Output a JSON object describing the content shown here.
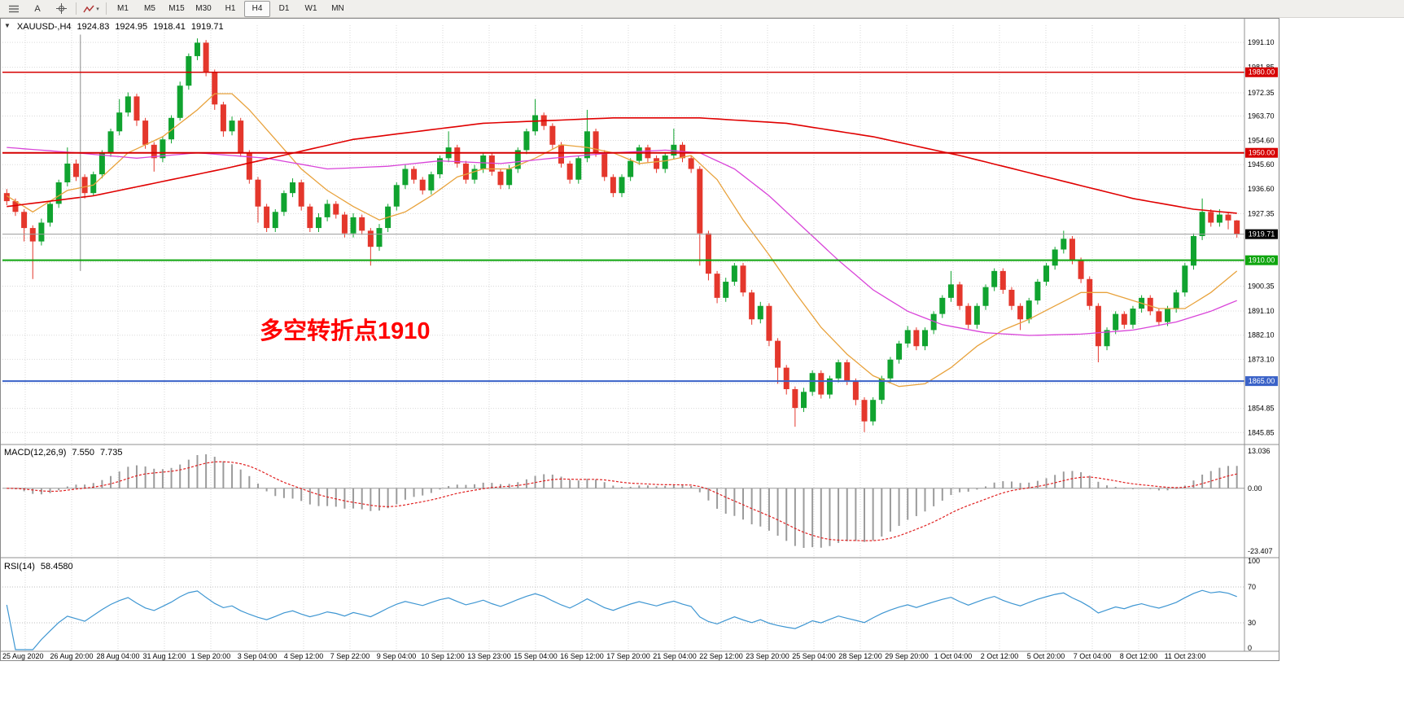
{
  "toolbar": {
    "buttons": [
      {
        "name": "chart-list"
      },
      {
        "label": "A"
      },
      {
        "name": "crosshair"
      },
      {
        "name": "draw-object"
      }
    ],
    "timeframes": [
      "M1",
      "M5",
      "M15",
      "M30",
      "H1",
      "H4",
      "D1",
      "W1",
      "MN"
    ],
    "active_timeframe": "H4"
  },
  "chart": {
    "title": {
      "symbol": "XAUUSD-,H4",
      "open": "1924.83",
      "high": "1924.95",
      "low": "1918.41",
      "close": "1919.71"
    },
    "annotation": {
      "text": "多空转折点1910",
      "color": "#ff0000"
    }
  },
  "chart_data": {
    "type": "candlestick",
    "symbol": "XAUUSD",
    "timeframe": "H4",
    "colors": {
      "up": "#10a32f",
      "down": "#e4372c",
      "grid": "#d9d9d9",
      "axis_text": "#000000",
      "macd_histogram": "#9b9b9b",
      "macd_signal": "#e02020",
      "rsi_line": "#3e96d2"
    },
    "price_axis": {
      "gridlines": [
        1991.1,
        1981.85,
        1972.35,
        1963.7,
        1954.6,
        1945.6,
        1936.6,
        1927.35,
        1918.35,
        1909.35,
        1900.35,
        1891.1,
        1882.1,
        1873.1,
        1864.1,
        1854.85,
        1845.85
      ],
      "hidden_labels": [
        1918.35,
        1909.35,
        1864.1
      ]
    },
    "time_axis_labels": [
      "25 Aug 2020",
      "26 Aug 20:00",
      "28 Aug 04:00",
      "31 Aug 12:00",
      "1 Sep 20:00",
      "3 Sep 04:00",
      "4 Sep 12:00",
      "7 Sep 22:00",
      "9 Sep 04:00",
      "10 Sep 12:00",
      "13 Sep 23:00",
      "15 Sep 04:00",
      "16 Sep 12:00",
      "17 Sep 20:00",
      "21 Sep 04:00",
      "22 Sep 12:00",
      "23 Sep 20:00",
      "25 Sep 04:00",
      "28 Sep 12:00",
      "29 Sep 20:00",
      "1 Oct 04:00",
      "2 Oct 12:00",
      "5 Oct 20:00",
      "7 Oct 04:00",
      "8 Oct 12:00",
      "11 Oct 23:00"
    ],
    "levels": [
      {
        "price": 1980.0,
        "label": "1980.00",
        "color": "#d60000",
        "width": 1.5
      },
      {
        "price": 1950.0,
        "label": "1950.00",
        "color": "#d60000",
        "width": 2
      },
      {
        "price": 1910.0,
        "label": "1910.00",
        "color": "#0ea50e",
        "width": 2
      },
      {
        "price": 1865.0,
        "label": "1865.00",
        "color": "#3a62c8",
        "width": 2
      }
    ],
    "bid": {
      "price": 1919.71,
      "label": "1919.71",
      "line_color": "#9c9c9c",
      "box_color": "#000000"
    },
    "objects": [
      {
        "type": "vertical-segment",
        "index": 8.5,
        "from_price": 1994,
        "to_price": 1906,
        "color": "#8a8a8a"
      }
    ],
    "moving_averages": [
      {
        "name": "ma-fast",
        "color": "#e8a23c",
        "width": 1.3,
        "points": [
          [
            0,
            1934
          ],
          [
            3,
            1928
          ],
          [
            7,
            1936
          ],
          [
            10,
            1938
          ],
          [
            14,
            1950
          ],
          [
            18,
            1956
          ],
          [
            22,
            1966
          ],
          [
            24,
            1972
          ],
          [
            26,
            1972
          ],
          [
            28,
            1966
          ],
          [
            31,
            1955
          ],
          [
            34,
            1944
          ],
          [
            37,
            1936
          ],
          [
            40,
            1930
          ],
          [
            43,
            1925
          ],
          [
            46,
            1928
          ],
          [
            49,
            1934
          ],
          [
            52,
            1941
          ],
          [
            55,
            1944
          ],
          [
            58,
            1944
          ],
          [
            61,
            1948
          ],
          [
            64,
            1953
          ],
          [
            67,
            1952
          ],
          [
            70,
            1950
          ],
          [
            73,
            1946
          ],
          [
            76,
            1947
          ],
          [
            79,
            1949
          ],
          [
            82,
            1940
          ],
          [
            85,
            1925
          ],
          [
            88,
            1912
          ],
          [
            91,
            1898
          ],
          [
            94,
            1885
          ],
          [
            97,
            1875
          ],
          [
            100,
            1867
          ],
          [
            103,
            1863
          ],
          [
            106,
            1864
          ],
          [
            109,
            1870
          ],
          [
            112,
            1878
          ],
          [
            115,
            1884
          ],
          [
            118,
            1888
          ],
          [
            121,
            1893
          ],
          [
            124,
            1898
          ],
          [
            127,
            1898
          ],
          [
            130,
            1895
          ],
          [
            133,
            1892
          ],
          [
            136,
            1892
          ],
          [
            139,
            1898
          ],
          [
            142,
            1906
          ]
        ]
      },
      {
        "name": "ma-mid",
        "color": "#d945d9",
        "width": 1.3,
        "points": [
          [
            0,
            1952
          ],
          [
            8,
            1950
          ],
          [
            15,
            1948
          ],
          [
            22,
            1950
          ],
          [
            30,
            1948
          ],
          [
            37,
            1944
          ],
          [
            44,
            1945
          ],
          [
            50,
            1947
          ],
          [
            57,
            1946
          ],
          [
            63,
            1948
          ],
          [
            70,
            1950
          ],
          [
            76,
            1951
          ],
          [
            80,
            1950
          ],
          [
            84,
            1944
          ],
          [
            88,
            1934
          ],
          [
            92,
            1922
          ],
          [
            96,
            1910
          ],
          [
            100,
            1899
          ],
          [
            104,
            1891
          ],
          [
            108,
            1886
          ],
          [
            113,
            1883
          ],
          [
            118,
            1882
          ],
          [
            124,
            1882.5
          ],
          [
            130,
            1884
          ],
          [
            135,
            1887
          ],
          [
            139,
            1891
          ],
          [
            142,
            1895
          ]
        ]
      },
      {
        "name": "ma-slow",
        "color": "#e00000",
        "width": 1.6,
        "points": [
          [
            0,
            1930
          ],
          [
            10,
            1934
          ],
          [
            25,
            1944
          ],
          [
            40,
            1955
          ],
          [
            55,
            1961
          ],
          [
            70,
            1963
          ],
          [
            80,
            1963
          ],
          [
            90,
            1961
          ],
          [
            100,
            1956
          ],
          [
            110,
            1949
          ],
          [
            120,
            1941
          ],
          [
            130,
            1933
          ],
          [
            137,
            1929
          ],
          [
            142,
            1927.5
          ]
        ]
      }
    ],
    "indicators": {
      "macd": {
        "label": "MACD(12,26,9)",
        "value_main": "7.550",
        "value_signal": "7.735",
        "fast": 12,
        "slow": 26,
        "signal": 9,
        "axis": [
          "13.036",
          "0.00",
          "-23.407"
        ]
      },
      "rsi": {
        "label": "RSI(14)",
        "value": "58.4580",
        "period": 14,
        "levels": [
          70,
          30
        ],
        "axis": [
          "100",
          "70",
          "30",
          "0"
        ]
      }
    },
    "ohlc": [
      [
        1935,
        1936.5,
        1930.5,
        1932
      ],
      [
        1932,
        1933,
        1926.5,
        1928
      ],
      [
        1928,
        1929,
        1917,
        1922
      ],
      [
        1922,
        1923,
        1903,
        1917
      ],
      [
        1917,
        1925.5,
        1915.5,
        1924
      ],
      [
        1924,
        1932,
        1922.5,
        1931
      ],
      [
        1931,
        1940,
        1929.5,
        1939
      ],
      [
        1939,
        1952,
        1937.5,
        1946
      ],
      [
        1946,
        1947.5,
        1939.5,
        1941
      ],
      [
        1941,
        1942,
        1933,
        1935
      ],
      [
        1935,
        1943,
        1934,
        1942
      ],
      [
        1942,
        1951,
        1940.5,
        1950
      ],
      [
        1950,
        1959,
        1948.5,
        1958
      ],
      [
        1958,
        1970,
        1956.5,
        1965
      ],
      [
        1965,
        1972.5,
        1963.5,
        1971
      ],
      [
        1971,
        1972,
        1960,
        1962
      ],
      [
        1962,
        1963,
        1951.5,
        1953
      ],
      [
        1953,
        1954,
        1943,
        1948
      ],
      [
        1948,
        1956,
        1946.5,
        1955
      ],
      [
        1955,
        1964,
        1953.5,
        1963
      ],
      [
        1963,
        1976.5,
        1962,
        1975
      ],
      [
        1975,
        1987,
        1973.5,
        1986
      ],
      [
        1986,
        1992.6,
        1984.5,
        1991
      ],
      [
        1991,
        1992,
        1978.5,
        1980
      ],
      [
        1980,
        1981,
        1966,
        1968
      ],
      [
        1968,
        1969,
        1956,
        1958
      ],
      [
        1958,
        1963.5,
        1956.5,
        1962
      ],
      [
        1962,
        1963,
        1948.5,
        1950
      ],
      [
        1950,
        1951,
        1938.5,
        1940
      ],
      [
        1940,
        1941,
        1924,
        1930
      ],
      [
        1930,
        1931,
        1920.5,
        1922
      ],
      [
        1922,
        1929,
        1920.5,
        1928
      ],
      [
        1928,
        1936,
        1926.5,
        1935
      ],
      [
        1935,
        1940.5,
        1933.5,
        1939
      ],
      [
        1939,
        1940,
        1928.5,
        1930
      ],
      [
        1930,
        1931,
        1920.5,
        1922
      ],
      [
        1922,
        1927.5,
        1920.5,
        1926
      ],
      [
        1926,
        1932.5,
        1924.5,
        1931
      ],
      [
        1931,
        1932,
        1925.5,
        1927
      ],
      [
        1927,
        1928,
        1918.5,
        1920
      ],
      [
        1920,
        1927.5,
        1918.5,
        1926
      ],
      [
        1926,
        1927,
        1919.5,
        1921
      ],
      [
        1921,
        1922,
        1908,
        1915
      ],
      [
        1915,
        1923.5,
        1913.5,
        1922
      ],
      [
        1922,
        1931,
        1920.5,
        1930
      ],
      [
        1930,
        1939,
        1928.5,
        1938
      ],
      [
        1938,
        1945.5,
        1936.5,
        1944
      ],
      [
        1944,
        1945,
        1938.5,
        1940
      ],
      [
        1940,
        1941,
        1934.5,
        1936
      ],
      [
        1936,
        1943,
        1934.5,
        1942
      ],
      [
        1942,
        1949,
        1940.5,
        1948
      ],
      [
        1948,
        1958,
        1946.5,
        1952
      ],
      [
        1952,
        1953,
        1944.5,
        1946
      ],
      [
        1946,
        1947,
        1938.5,
        1940
      ],
      [
        1940,
        1945.5,
        1938.5,
        1944
      ],
      [
        1944,
        1950,
        1942.5,
        1949
      ],
      [
        1949,
        1950,
        1941.5,
        1943
      ],
      [
        1943,
        1944,
        1936.5,
        1938
      ],
      [
        1938,
        1945.5,
        1936.5,
        1944
      ],
      [
        1944,
        1952,
        1942.5,
        1951
      ],
      [
        1951,
        1959,
        1949.5,
        1958
      ],
      [
        1958,
        1970,
        1956.5,
        1964
      ],
      [
        1964,
        1965,
        1958.5,
        1960
      ],
      [
        1960,
        1961,
        1951.5,
        1953
      ],
      [
        1953,
        1954,
        1944.5,
        1946
      ],
      [
        1946,
        1947,
        1938.5,
        1940
      ],
      [
        1940,
        1949,
        1938.5,
        1948
      ],
      [
        1948,
        1966,
        1946.5,
        1958
      ],
      [
        1958,
        1959,
        1948.5,
        1950
      ],
      [
        1950,
        1951,
        1939.5,
        1941
      ],
      [
        1941,
        1942,
        1933.5,
        1935
      ],
      [
        1935,
        1942,
        1933.5,
        1941
      ],
      [
        1941,
        1948,
        1939.5,
        1947
      ],
      [
        1947,
        1953,
        1945.5,
        1952
      ],
      [
        1952,
        1953,
        1946.5,
        1948
      ],
      [
        1948,
        1949,
        1942.5,
        1944
      ],
      [
        1944,
        1950,
        1942.5,
        1949
      ],
      [
        1949,
        1959,
        1947.5,
        1953
      ],
      [
        1953,
        1954,
        1946.5,
        1948
      ],
      [
        1948,
        1949,
        1942.5,
        1944
      ],
      [
        1944,
        1945,
        1908,
        1920
      ],
      [
        1920,
        1921,
        1902.5,
        1905
      ],
      [
        1905,
        1906,
        1894,
        1896
      ],
      [
        1896,
        1903.5,
        1894.5,
        1902
      ],
      [
        1902,
        1909,
        1900.5,
        1908
      ],
      [
        1908,
        1909,
        1896.5,
        1898
      ],
      [
        1898,
        1899,
        1886,
        1888
      ],
      [
        1888,
        1894.5,
        1886.5,
        1893
      ],
      [
        1893,
        1894,
        1878,
        1880
      ],
      [
        1880,
        1881,
        1864,
        1870
      ],
      [
        1870,
        1871,
        1860,
        1862
      ],
      [
        1862,
        1863,
        1848,
        1855
      ],
      [
        1855,
        1862.5,
        1853.5,
        1861
      ],
      [
        1861,
        1869,
        1859.5,
        1868
      ],
      [
        1868,
        1869,
        1858.5,
        1860
      ],
      [
        1860,
        1867,
        1858.5,
        1866
      ],
      [
        1866,
        1873,
        1864.5,
        1872
      ],
      [
        1872,
        1873,
        1863.5,
        1865
      ],
      [
        1865,
        1866,
        1856,
        1858
      ],
      [
        1858,
        1859,
        1846,
        1850
      ],
      [
        1850,
        1859,
        1848.5,
        1858
      ],
      [
        1858,
        1867,
        1856.5,
        1866
      ],
      [
        1866,
        1874,
        1864.5,
        1873
      ],
      [
        1873,
        1880,
        1871.5,
        1879
      ],
      [
        1879,
        1885.5,
        1877.5,
        1884
      ],
      [
        1884,
        1885,
        1876.5,
        1878
      ],
      [
        1878,
        1885,
        1876.5,
        1884
      ],
      [
        1884,
        1891,
        1882.5,
        1890
      ],
      [
        1890,
        1897,
        1888.5,
        1896
      ],
      [
        1896,
        1906,
        1894.5,
        1901
      ],
      [
        1901,
        1902,
        1891.5,
        1893
      ],
      [
        1893,
        1894,
        1884.5,
        1886
      ],
      [
        1886,
        1894,
        1884.5,
        1893
      ],
      [
        1893,
        1901,
        1891.5,
        1900
      ],
      [
        1900,
        1907,
        1898.5,
        1906
      ],
      [
        1906,
        1907,
        1897.5,
        1899
      ],
      [
        1899,
        1900,
        1891.5,
        1893
      ],
      [
        1893,
        1894,
        1884,
        1888
      ],
      [
        1888,
        1896,
        1886.5,
        1895
      ],
      [
        1895,
        1903,
        1893.5,
        1902
      ],
      [
        1902,
        1909,
        1900.5,
        1908
      ],
      [
        1908,
        1915,
        1906.5,
        1914
      ],
      [
        1914,
        1921,
        1912.5,
        1918
      ],
      [
        1918,
        1919,
        1908.5,
        1910
      ],
      [
        1910,
        1911,
        1901.5,
        1903
      ],
      [
        1903,
        1904,
        1891.5,
        1893
      ],
      [
        1893,
        1894,
        1872,
        1878
      ],
      [
        1878,
        1885,
        1876.5,
        1884
      ],
      [
        1884,
        1891,
        1882.5,
        1890
      ],
      [
        1890,
        1891,
        1884.5,
        1886
      ],
      [
        1886,
        1893,
        1884.5,
        1892
      ],
      [
        1892,
        1897,
        1890.5,
        1896
      ],
      [
        1896,
        1897,
        1889.5,
        1891
      ],
      [
        1891,
        1892,
        1885.5,
        1887
      ],
      [
        1887,
        1893,
        1885.5,
        1892
      ],
      [
        1892,
        1899,
        1890.5,
        1898
      ],
      [
        1898,
        1909,
        1896.5,
        1908
      ],
      [
        1908,
        1920,
        1906.5,
        1919
      ],
      [
        1919,
        1933,
        1917.5,
        1928
      ],
      [
        1928,
        1929,
        1922.5,
        1924
      ],
      [
        1924,
        1929,
        1922.5,
        1927
      ],
      [
        1927,
        1928,
        1921.5,
        1924.83
      ],
      [
        1924.83,
        1924.95,
        1918.41,
        1919.71
      ]
    ]
  }
}
